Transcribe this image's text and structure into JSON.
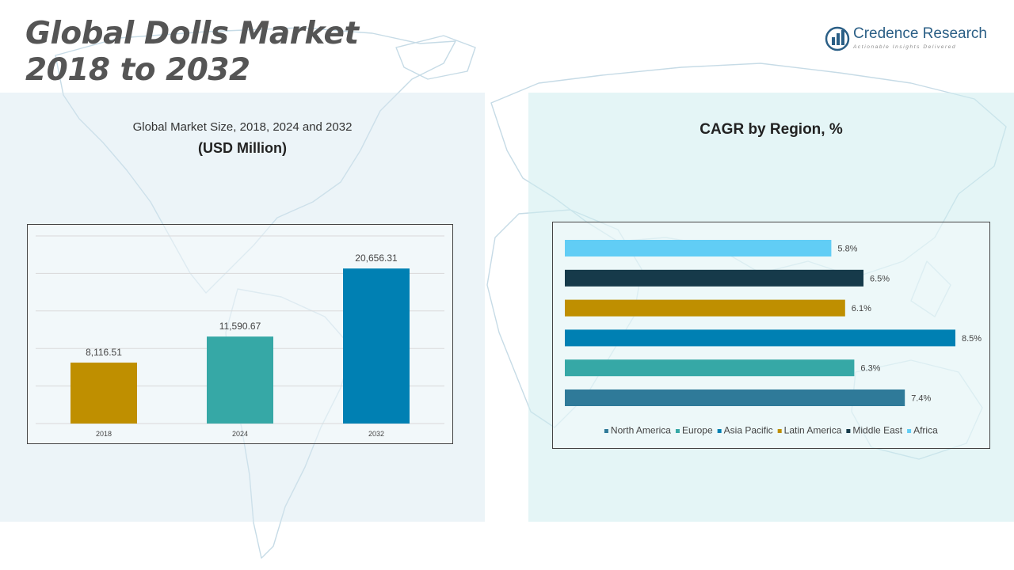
{
  "header": {
    "title_line1": "Global Dolls Market",
    "title_line2": "2018 to 2032"
  },
  "logo": {
    "name": "Credence Research",
    "tagline": "Actionable Insights Delivered",
    "icon": "bar-chart-logo-icon"
  },
  "left_panel": {
    "subtitle": "Global Market Size, 2018, 2024 and 2032",
    "unit": "(USD Million)"
  },
  "right_panel": {
    "title": "CAGR by Region, %"
  },
  "colors": {
    "gold": "#bf8f00",
    "teal": "#36a8a6",
    "blue": "#0080b3",
    "steel": "#2f7a99",
    "navy": "#163a4a",
    "sky": "#61cdf5"
  },
  "chart_data": [
    {
      "type": "bar",
      "categories": [
        "2018",
        "2024",
        "2032"
      ],
      "values": [
        8116.51,
        11590.67,
        20656.31
      ],
      "value_labels": [
        "8,116.51",
        "11,590.67",
        "20,656.31"
      ],
      "colors": [
        "#bf8f00",
        "#36a8a6",
        "#0080b3"
      ],
      "ylim": [
        0,
        25000
      ],
      "grid": true
    },
    {
      "type": "bar",
      "orientation": "horizontal",
      "title": "CAGR by Region, %",
      "categories": [
        "North America",
        "Europe",
        "Asia Pacific",
        "Latin America",
        "Middle East",
        "Africa"
      ],
      "values": [
        7.4,
        6.3,
        8.5,
        6.1,
        6.5,
        5.8
      ],
      "value_labels": [
        "7.4%",
        "6.3%",
        "8.5%",
        "6.1%",
        "6.5%",
        "5.8%"
      ],
      "colors": [
        "#2f7a99",
        "#36a8a6",
        "#0080b3",
        "#bf8f00",
        "#163a4a",
        "#61cdf5"
      ],
      "xlim": [
        0,
        8.5
      ],
      "legend": "bottom",
      "grid": false
    }
  ]
}
